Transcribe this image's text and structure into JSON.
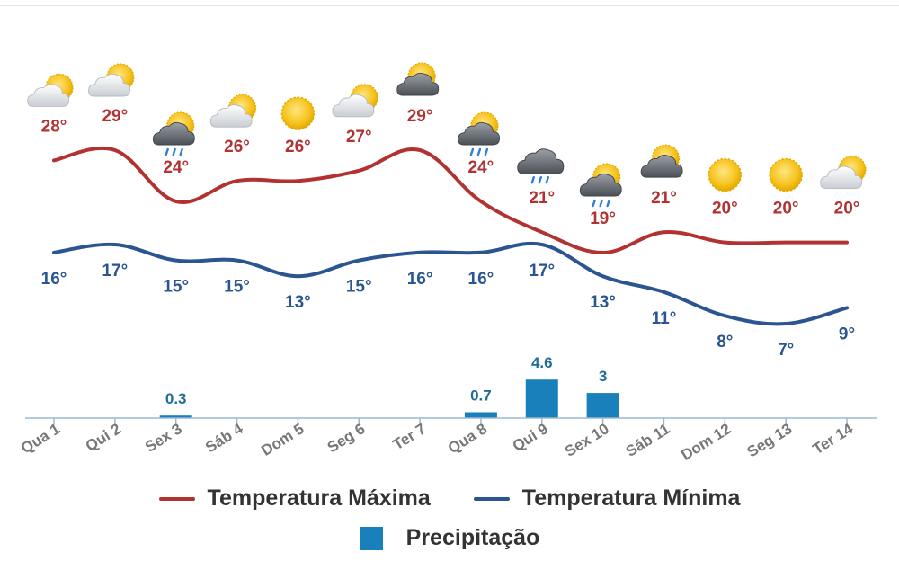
{
  "chart_data": {
    "type": "line",
    "categories": [
      "Qua 1",
      "Qui 2",
      "Sex 3",
      "Sáb 4",
      "Dom 5",
      "Seg 6",
      "Ter 7",
      "Qua 8",
      "Qui 9",
      "Sex 10",
      "Sáb 11",
      "Dom 12",
      "Seg 13",
      "Ter 14"
    ],
    "weather_icons": [
      "partly-cloudy",
      "partly-cloudy",
      "thunder-rain",
      "partly-cloudy",
      "sunny",
      "partly-cloudy",
      "sun-dark-cloud",
      "sun-rain-cloud",
      "rain-cloud",
      "sun-rain-cloud",
      "sun-dark-cloud",
      "sunny",
      "sunny",
      "partly-cloudy"
    ],
    "series": [
      {
        "name": "Temperatura Máxima",
        "color": "#b23232",
        "values": [
          28,
          29,
          24,
          26,
          26,
          27,
          29,
          24,
          21,
          19,
          21,
          20,
          20,
          20
        ],
        "labels": [
          "28°",
          "29°",
          "24°",
          "26°",
          "26°",
          "27°",
          "29°",
          "24°",
          "21°",
          "19°",
          "21°",
          "20°",
          "20°",
          "20°"
        ]
      },
      {
        "name": "Temperatura Mínima",
        "color": "#2a5590",
        "values": [
          16,
          17,
          15,
          15,
          13,
          15,
          16,
          16,
          17,
          13,
          11,
          8,
          7,
          9
        ],
        "labels": [
          "16°",
          "17°",
          "15°",
          "15°",
          "13°",
          "15°",
          "16°",
          "16°",
          "17°",
          "13°",
          "11°",
          "8°",
          "7°",
          "9°"
        ]
      },
      {
        "name": "Precipitação",
        "type": "bar",
        "color": "#1a80bb",
        "values": [
          0,
          0,
          0.3,
          0,
          0,
          0,
          0,
          0.7,
          4.6,
          3,
          0,
          0,
          0,
          0
        ],
        "labels": [
          "",
          "",
          "0.3",
          "",
          "",
          "",
          "",
          "0.7",
          "4.6",
          "3",
          "",
          "",
          "",
          ""
        ]
      }
    ],
    "legend_position": "bottom",
    "grid": false
  }
}
